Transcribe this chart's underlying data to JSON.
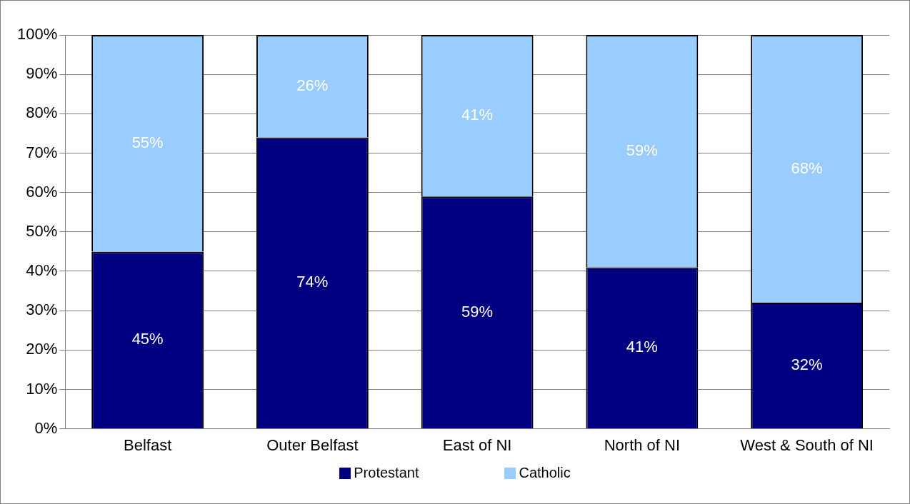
{
  "chart_data": {
    "type": "bar",
    "stacked": true,
    "categories": [
      "Belfast",
      "Outer Belfast",
      "East of NI",
      "North of NI",
      "West & South of NI"
    ],
    "series": [
      {
        "name": "Protestant",
        "color": "#000080",
        "values": [
          45,
          74,
          59,
          41,
          32
        ],
        "value_labels": [
          "45%",
          "74%",
          "59%",
          "41%",
          "32%"
        ]
      },
      {
        "name": "Catholic",
        "color": "#99ccff",
        "values": [
          55,
          26,
          41,
          59,
          68
        ],
        "value_labels": [
          "55%",
          "26%",
          "41%",
          "59%",
          "68%"
        ]
      }
    ],
    "ylim": [
      0,
      100
    ],
    "yticks": [
      {
        "value": 0,
        "label": "0%"
      },
      {
        "value": 10,
        "label": "10%"
      },
      {
        "value": 20,
        "label": "20%"
      },
      {
        "value": 30,
        "label": "30%"
      },
      {
        "value": 40,
        "label": "40%"
      },
      {
        "value": 50,
        "label": "50%"
      },
      {
        "value": 60,
        "label": "60%"
      },
      {
        "value": 70,
        "label": "70%"
      },
      {
        "value": 80,
        "label": "80%"
      },
      {
        "value": 90,
        "label": "90%"
      },
      {
        "value": 100,
        "label": "100%"
      }
    ],
    "grid": "y",
    "legend": "bottom"
  }
}
